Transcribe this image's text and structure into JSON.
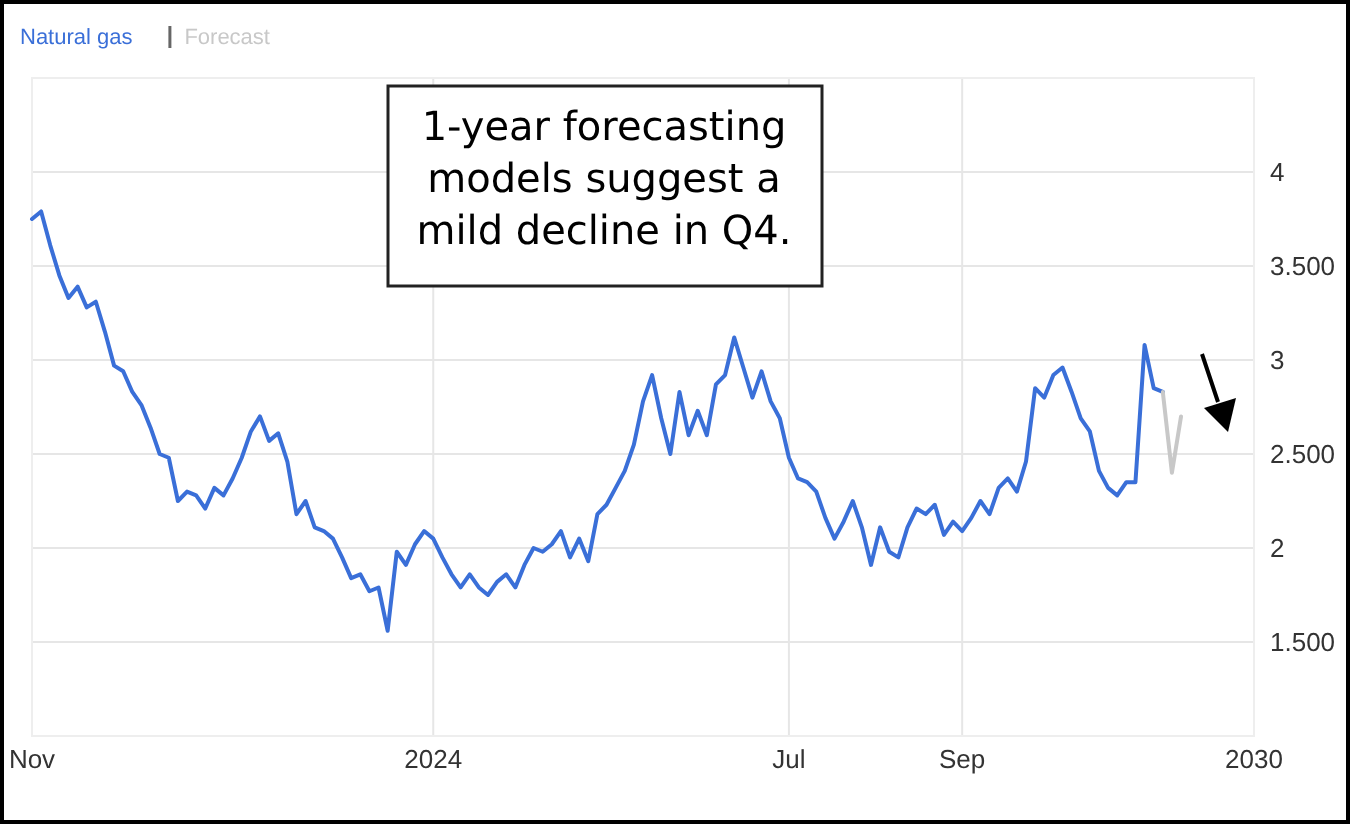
{
  "chart_data": {
    "type": "line",
    "legend": "top left",
    "grid": true,
    "marker": "none",
    "line_style": "solid",
    "annotations": [
      "1-year forecasting models suggest a mild decline in Q4."
    ],
    "categories": [
      "Nov",
      null,
      null,
      null,
      null,
      null,
      null,
      null,
      null,
      null,
      null,
      null,
      null,
      null,
      null,
      null,
      null,
      null,
      null,
      null,
      null,
      null,
      null,
      null,
      null,
      null,
      null,
      null,
      null,
      null,
      null,
      null,
      null,
      null,
      null,
      null,
      null,
      null,
      null,
      null,
      null,
      null,
      null,
      null,
      "2024",
      null,
      null,
      null,
      null,
      null,
      null,
      null,
      null,
      null,
      null,
      null,
      null,
      null,
      null,
      null,
      null,
      null,
      null,
      null,
      null,
      null,
      null,
      null,
      null,
      null,
      null,
      null,
      null,
      null,
      null,
      null,
      null,
      null,
      null,
      null,
      null,
      null,
      null,
      "Jul",
      null,
      null,
      null,
      null,
      null,
      null,
      null,
      null,
      null,
      null,
      null,
      null,
      null,
      null,
      null,
      null,
      null,
      null,
      "Sep",
      null,
      null,
      null,
      null,
      null,
      null,
      null,
      null,
      null,
      null,
      null,
      null,
      null,
      null,
      null,
      null,
      null,
      null,
      null,
      null,
      null,
      null,
      null,
      null,
      null,
      null,
      null,
      null,
      null,
      null,
      null,
      "2030"
    ],
    "ylim": [
      1,
      4.5
    ],
    "yticks": [
      {
        "value": 1.5,
        "label": "1.500"
      },
      2,
      {
        "value": 2.5,
        "label": "2.500"
      },
      3,
      {
        "value": 3.5,
        "label": "3.500"
      },
      4
    ],
    "series": [
      {
        "name": "Natural gas",
        "color": "#3a6fd8",
        "values": [
          3.75,
          3.79,
          3.61,
          3.45,
          3.33,
          3.39,
          3.28,
          3.31,
          3.15,
          2.97,
          2.94,
          2.83,
          2.76,
          2.64,
          2.5,
          2.48,
          2.25,
          2.3,
          2.28,
          2.21,
          2.32,
          2.28,
          2.37,
          2.48,
          2.62,
          2.7,
          2.57,
          2.61,
          2.46,
          2.18,
          2.25,
          2.11,
          2.09,
          2.05,
          1.95,
          1.84,
          1.86,
          1.77,
          1.79,
          1.56,
          1.98,
          1.91,
          2.02,
          2.09,
          2.05,
          1.95,
          1.86,
          1.79,
          1.86,
          1.79,
          1.75,
          1.82,
          1.86,
          1.79,
          1.91,
          2.0,
          1.98,
          2.02,
          2.09,
          1.95,
          2.05,
          1.93,
          2.18,
          2.23,
          2.32,
          2.41,
          2.55,
          2.78,
          2.92,
          2.69,
          2.5,
          2.83,
          2.6,
          2.73,
          2.6,
          2.87,
          2.92,
          3.12,
          2.96,
          2.8,
          2.94,
          2.78,
          2.69,
          2.48,
          2.37,
          2.35,
          2.3,
          2.16,
          2.05,
          2.14,
          2.25,
          2.11,
          1.91,
          2.11,
          1.98,
          1.95,
          2.11,
          2.21,
          2.18,
          2.23,
          2.07,
          2.14,
          2.09,
          2.16,
          2.25,
          2.18,
          2.32,
          2.37,
          2.3,
          2.46,
          2.85,
          2.8,
          2.92,
          2.96,
          2.83,
          2.69,
          2.62,
          2.41,
          2.32,
          2.28,
          2.35,
          2.35,
          3.08,
          2.85,
          2.83,
          null,
          null,
          null,
          null,
          null,
          null,
          null,
          null,
          null,
          null
        ]
      },
      {
        "name": "Forecast",
        "color": "#c8c8c8",
        "values": [
          null,
          null,
          null,
          null,
          null,
          null,
          null,
          null,
          null,
          null,
          null,
          null,
          null,
          null,
          null,
          null,
          null,
          null,
          null,
          null,
          null,
          null,
          null,
          null,
          null,
          null,
          null,
          null,
          null,
          null,
          null,
          null,
          null,
          null,
          null,
          null,
          null,
          null,
          null,
          null,
          null,
          null,
          null,
          null,
          null,
          null,
          null,
          null,
          null,
          null,
          null,
          null,
          null,
          null,
          null,
          null,
          null,
          null,
          null,
          null,
          null,
          null,
          null,
          null,
          null,
          null,
          null,
          null,
          null,
          null,
          null,
          null,
          null,
          null,
          null,
          null,
          null,
          null,
          null,
          null,
          null,
          null,
          null,
          null,
          null,
          null,
          null,
          null,
          null,
          null,
          null,
          null,
          null,
          null,
          null,
          null,
          null,
          null,
          null,
          null,
          null,
          null,
          null,
          null,
          null,
          null,
          null,
          null,
          null,
          null,
          null,
          null,
          null,
          null,
          null,
          null,
          null,
          null,
          null,
          null,
          null,
          null,
          null,
          null,
          2.83,
          2.4,
          2.7,
          null,
          null,
          null,
          null,
          null,
          null,
          null,
          null
        ]
      }
    ]
  }
}
